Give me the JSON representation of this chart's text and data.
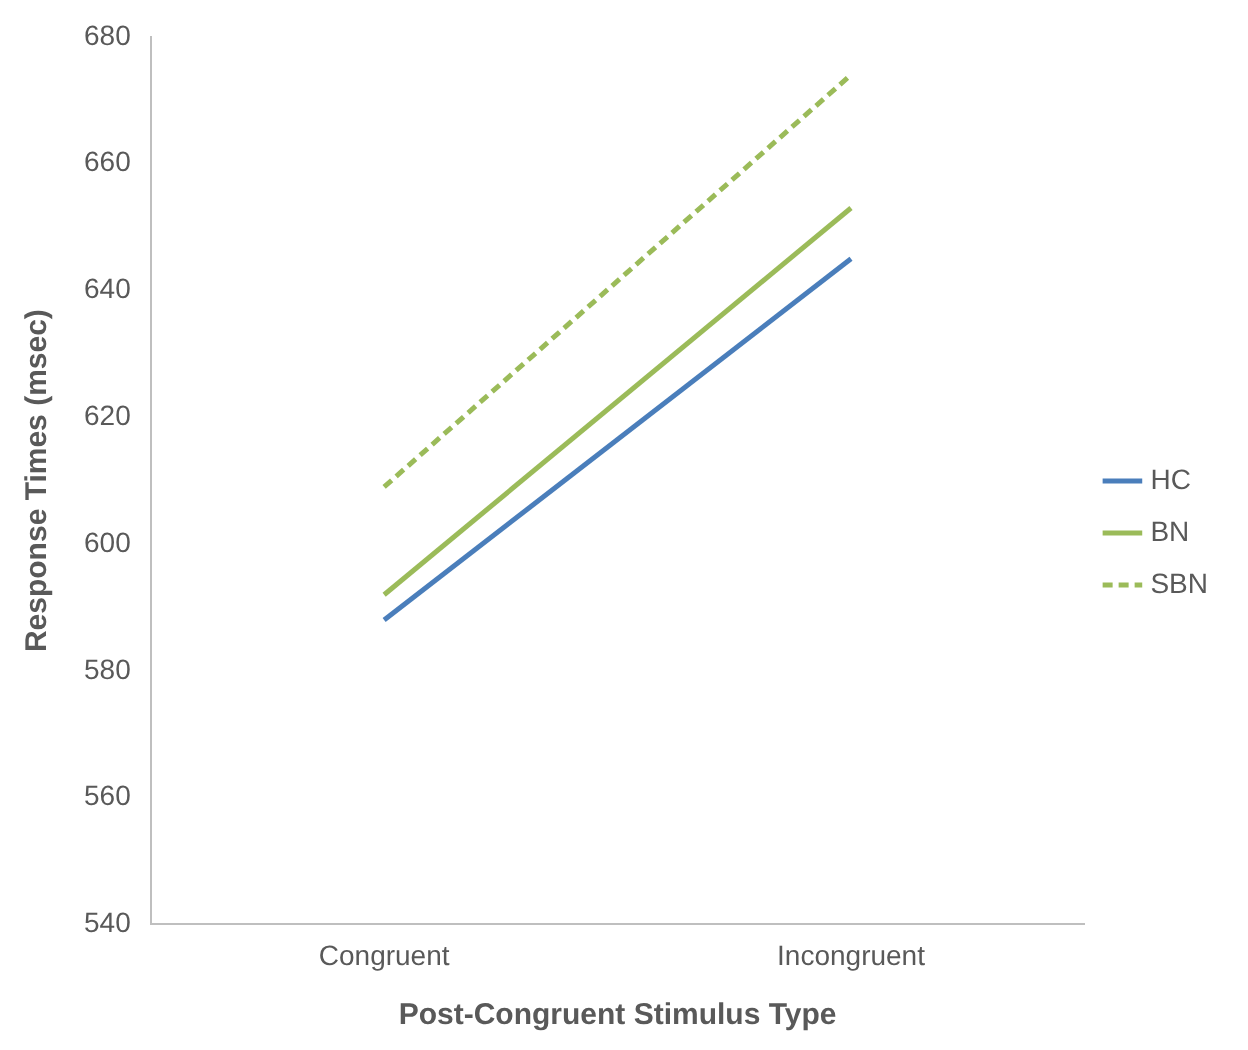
{
  "chart_data": {
    "type": "line",
    "xlabel": "Post-Congruent Stimulus Type",
    "ylabel": "Response Times (msec)",
    "categories": [
      "Congruent",
      "Incongruent"
    ],
    "series": [
      {
        "name": "HC",
        "color": "#4a7ebb",
        "values": [
          588,
          645
        ],
        "line_style": "solid"
      },
      {
        "name": "BN",
        "color": "#9bbb59",
        "values": [
          592,
          653
        ],
        "line_style": "solid"
      },
      {
        "name": "SBN",
        "color": "#9bbb59",
        "values": [
          609,
          674
        ],
        "line_style": "dashed"
      }
    ],
    "ylim": [
      540,
      680
    ],
    "yticks": [
      540,
      560,
      580,
      600,
      620,
      640,
      660,
      680
    ],
    "grid": false,
    "legend": "right",
    "marker": "none"
  }
}
